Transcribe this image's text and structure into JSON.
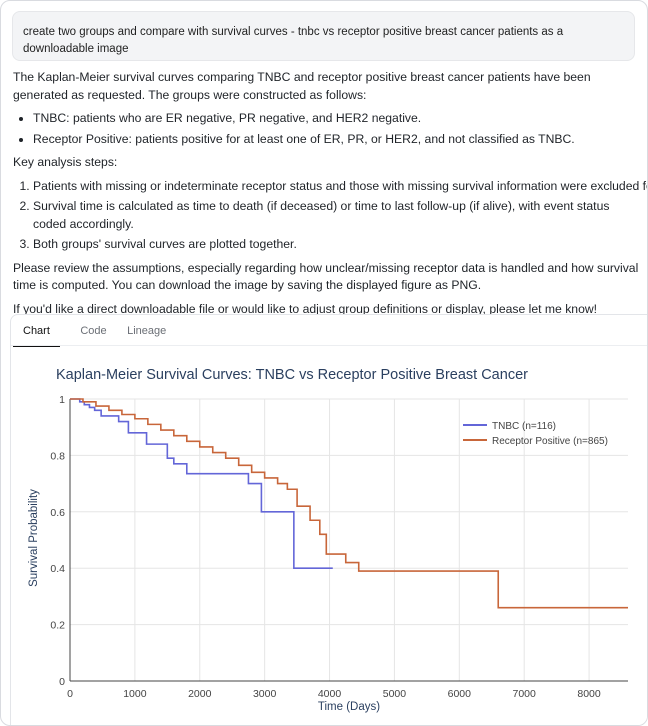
{
  "prompt": {
    "text": "create two groups and compare with survival curves - tnbc vs receptor positive breast cancer patients as a downloadable image"
  },
  "response": {
    "intro": "The Kaplan-Meier survival curves comparing TNBC and receptor positive breast cancer patients have been generated as requested. The groups were constructed as follows:",
    "bullets": [
      "TNBC: patients who are ER negative, PR negative, and HER2 negative.",
      "Receptor Positive: patients positive for at least one of ER, PR, or HER2, and not classified as TNBC."
    ],
    "steps_heading": "Key analysis steps:",
    "steps": [
      "Patients with missing or indeterminate receptor status and those with missing survival information were excluded for clarity.",
      "Survival time is calculated as time to death (if deceased) or time to last follow-up (if alive), with event status coded accordingly.",
      "Both groups' survival curves are plotted together."
    ],
    "review": "Please review the assumptions, especially regarding how unclear/missing receptor data is handled and how survival time is computed. You can download the image by saving the displayed figure as PNG.",
    "closing": "If you'd like a direct downloadable file or would like to adjust group definitions or display, please let me know!"
  },
  "tabs": [
    "Chart",
    "Code",
    "Lineage"
  ],
  "colors": {
    "tnbc": "#6366d8",
    "receptor": "#c8663a",
    "title": "#2a3f5f",
    "grid": "#e5e5e5"
  },
  "chart_data": {
    "type": "line",
    "title": "Kaplan-Meier Survival Curves: TNBC vs Receptor Positive Breast Cancer",
    "xlabel": "Time (Days)",
    "ylabel": "Survival Probability",
    "xlim": [
      0,
      8600
    ],
    "ylim": [
      0,
      1
    ],
    "xticks": [
      0,
      1000,
      2000,
      3000,
      4000,
      5000,
      6000,
      7000,
      8000
    ],
    "yticks": [
      0,
      0.2,
      0.4,
      0.6,
      0.8,
      1
    ],
    "ytick_labels": [
      "0",
      "0.2",
      "0.4",
      "0.6",
      "0.8",
      "1"
    ],
    "legend_position": "top-right",
    "series": [
      {
        "name": "TNBC (n=116)",
        "color_key": "tnbc",
        "x": [
          0,
          150,
          220,
          300,
          380,
          480,
          750,
          900,
          1180,
          1500,
          1600,
          1800,
          2300,
          2600,
          2750,
          2950,
          3450,
          4050
        ],
        "y": [
          1,
          0.99,
          0.98,
          0.97,
          0.96,
          0.94,
          0.92,
          0.88,
          0.84,
          0.79,
          0.77,
          0.735,
          0.735,
          0.735,
          0.7,
          0.6,
          0.4,
          0.4
        ]
      },
      {
        "name": "Receptor Positive (n=865)",
        "color_key": "receptor",
        "x": [
          0,
          200,
          400,
          600,
          800,
          1000,
          1200,
          1400,
          1600,
          1800,
          2000,
          2200,
          2400,
          2600,
          2800,
          3000,
          3200,
          3350,
          3500,
          3700,
          3850,
          3950,
          4250,
          4450,
          5000,
          6000,
          6300,
          6600,
          7000,
          8000,
          8600
        ],
        "y": [
          1,
          0.99,
          0.975,
          0.96,
          0.945,
          0.93,
          0.91,
          0.89,
          0.87,
          0.85,
          0.83,
          0.81,
          0.79,
          0.765,
          0.74,
          0.72,
          0.7,
          0.68,
          0.62,
          0.57,
          0.52,
          0.45,
          0.42,
          0.39,
          0.39,
          0.39,
          0.39,
          0.26,
          0.26,
          0.26,
          0.26
        ]
      }
    ]
  }
}
